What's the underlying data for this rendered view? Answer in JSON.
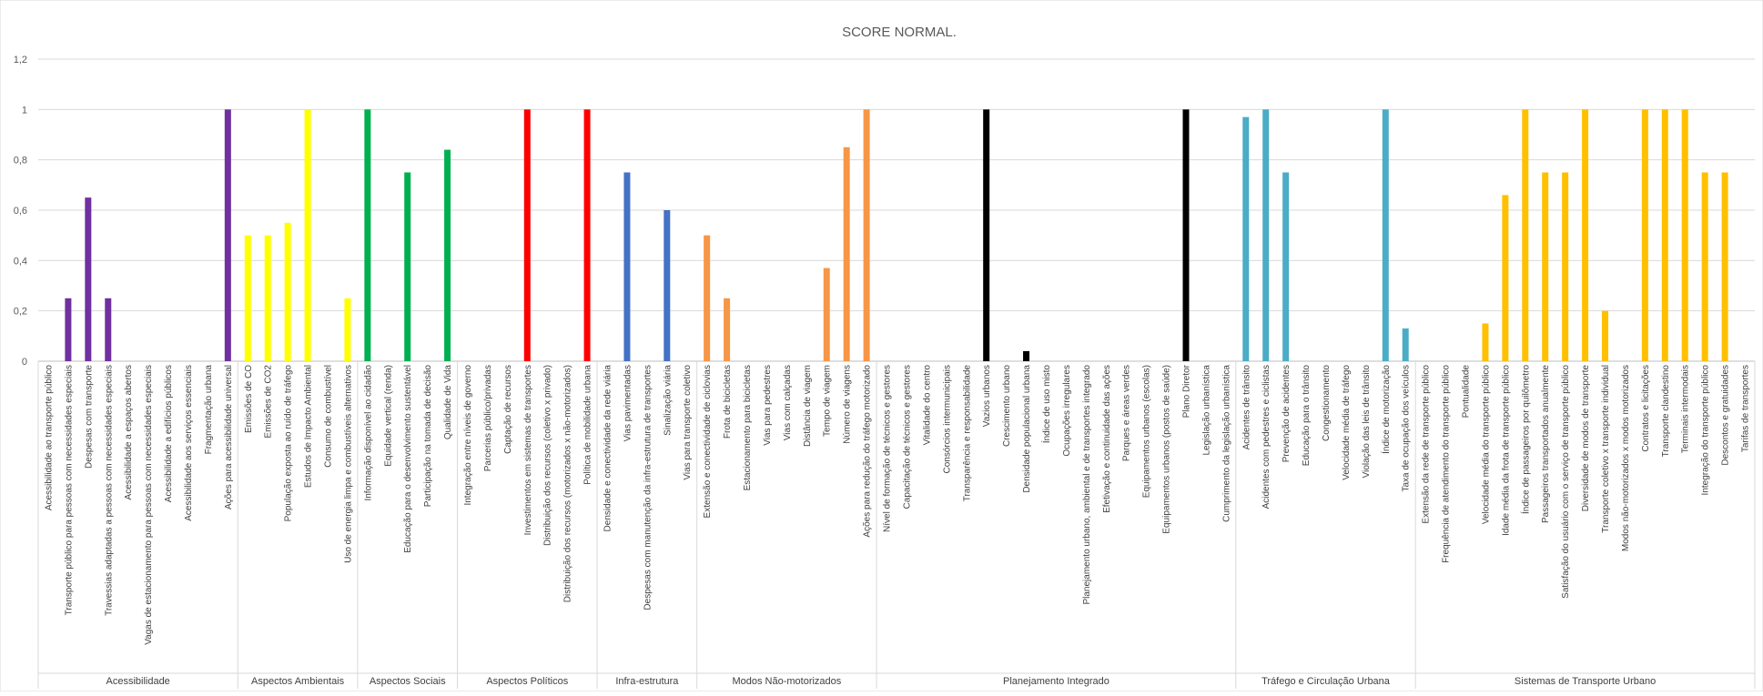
{
  "chart_data": {
    "type": "bar",
    "title": "SCORE NORMAL.",
    "ylim": [
      0,
      1.2
    ],
    "yticks": [
      "0",
      "0,2",
      "0,4",
      "0,6",
      "0,8",
      "1",
      "1,2"
    ],
    "grid": true,
    "legend": "none",
    "groups": [
      {
        "name": "Acessibilidade",
        "color": "#7030A0",
        "items": [
          {
            "label": "Acessibilidade ao transporte público",
            "value": 0
          },
          {
            "label": "Transporte público para pessoas com necessidades especiais",
            "value": 0.25
          },
          {
            "label": "Despesas com transporte",
            "value": 0.65
          },
          {
            "label": "Travessias adaptadas a pessoas com necessidades especiais",
            "value": 0.25
          },
          {
            "label": "Acessibilidade a espaços abertos",
            "value": 0
          },
          {
            "label": "Vagas de estacionamento para pessoas com necessidades especiais",
            "value": 0
          },
          {
            "label": "Acessibilidade a edifícios públicos",
            "value": 0
          },
          {
            "label": "Acessibilidade aos serviços essenciais",
            "value": 0
          },
          {
            "label": "Fragmentação urbana",
            "value": 0
          },
          {
            "label": "Ações para acessibilidade universal",
            "value": 1
          }
        ]
      },
      {
        "name": "Aspectos Ambientais",
        "color": "#FFFF00",
        "items": [
          {
            "label": "Emissões de CO",
            "value": 0.5
          },
          {
            "label": "Emissões de CO2",
            "value": 0.5
          },
          {
            "label": "População exposta ao ruído de tráfego",
            "value": 0.55
          },
          {
            "label": "Estudos de Impacto Ambiental",
            "value": 1
          },
          {
            "label": "Consumo de combustível",
            "value": 0
          },
          {
            "label": "Uso de energia limpa e combustíveis alternativos",
            "value": 0.25
          }
        ]
      },
      {
        "name": "Aspectos Sociais",
        "color": "#00B050",
        "items": [
          {
            "label": "Informação disponível ao cidadão",
            "value": 1
          },
          {
            "label": "Equidade vertical (renda)",
            "value": 0
          },
          {
            "label": "Educação para o desenvolvimento sustentável",
            "value": 0.75
          },
          {
            "label": "Participação na tomada de decisão",
            "value": 0
          },
          {
            "label": "Qualidade de Vida",
            "value": 0.84
          }
        ]
      },
      {
        "name": "Aspectos Políticos",
        "color": "#FF0000",
        "items": [
          {
            "label": "Integração entre níveis de governo",
            "value": 0
          },
          {
            "label": "Parcerias público/privadas",
            "value": 0
          },
          {
            "label": "Captação de recursos",
            "value": 0
          },
          {
            "label": "Investimentos em sistemas de transportes",
            "value": 1
          },
          {
            "label": "Distribuição dos recursos (coletivo x privado)",
            "value": 0
          },
          {
            "label": "Distribuição dos recursos (motorizados x não-motorizados)",
            "value": 0
          },
          {
            "label": "Política de mobilidade urbana",
            "value": 1
          }
        ]
      },
      {
        "name": "Infra-estrutura",
        "color": "#4472C4",
        "items": [
          {
            "label": "Densidade e conectividade da rede viária",
            "value": 0
          },
          {
            "label": "Vias pavimentadas",
            "value": 0.75
          },
          {
            "label": "Despesas com manutenção da infra-estrutura de transportes",
            "value": 0
          },
          {
            "label": "Sinalização viária",
            "value": 0.6
          },
          {
            "label": "Vias para transporte coletivo",
            "value": 0
          }
        ]
      },
      {
        "name": "Modos Não-motorizados",
        "color": "#F79646",
        "items": [
          {
            "label": "Extensão e conectividade de ciclovias",
            "value": 0.5
          },
          {
            "label": "Frota de bicicletas",
            "value": 0.25
          },
          {
            "label": "Estacionamento para bicicletas",
            "value": 0
          },
          {
            "label": "Vias para pedestres",
            "value": 0
          },
          {
            "label": "Vias com calçadas",
            "value": 0
          },
          {
            "label": "Distância de viagem",
            "value": 0
          },
          {
            "label": "Tempo de viagem",
            "value": 0.37
          },
          {
            "label": "Número de viagens",
            "value": 0.85
          },
          {
            "label": "Ações para redução do tráfego motorizado",
            "value": 1
          }
        ]
      },
      {
        "name": "Planejamento Integrado",
        "color": "#000000",
        "items": [
          {
            "label": "Nível de formação de técnicos e gestores",
            "value": 0
          },
          {
            "label": "Capacitação de técnicos e gestores",
            "value": 0
          },
          {
            "label": "Vitalidade do centro",
            "value": 0
          },
          {
            "label": "Consórcios intermunicipais",
            "value": 0
          },
          {
            "label": "Transparência e responsabilidade",
            "value": 0
          },
          {
            "label": "Vazios urbanos",
            "value": 1
          },
          {
            "label": "Crescimento urbano",
            "value": 0
          },
          {
            "label": "Densidade populacional urbana",
            "value": 0.04
          },
          {
            "label": "Índice de uso misto",
            "value": 0
          },
          {
            "label": "Ocupações irregulares",
            "value": 0
          },
          {
            "label": "Planejamento urbano, ambiental e de transportes integrado",
            "value": 0
          },
          {
            "label": "Efetivação e continuidade das ações",
            "value": 0
          },
          {
            "label": "Parques e áreas verdes",
            "value": 0
          },
          {
            "label": "Equipamentos urbanos (escolas)",
            "value": 0
          },
          {
            "label": "Equipamentos urbanos (postos de saúde)",
            "value": 0
          },
          {
            "label": "Plano Diretor",
            "value": 1
          },
          {
            "label": "Legislação urbanística",
            "value": 0
          },
          {
            "label": "Cumprimento da legislação urbanística",
            "value": 0
          }
        ]
      },
      {
        "name": "Tráfego e Circulação Urbana",
        "color": "#4BACC6",
        "items": [
          {
            "label": "Acidentes de trânsito",
            "value": 0.97
          },
          {
            "label": "Acidentes com pedestres e ciclistas",
            "value": 1
          },
          {
            "label": "Prevenção de acidentes",
            "value": 0.75
          },
          {
            "label": "Educação para o trânsito",
            "value": 0
          },
          {
            "label": "Congestionamento",
            "value": 0
          },
          {
            "label": "Velocidade média de tráfego",
            "value": 0
          },
          {
            "label": "Violação das leis de trânsito",
            "value": 0
          },
          {
            "label": "Índice de motorização",
            "value": 1
          },
          {
            "label": "Taxa de ocupação dos veículos",
            "value": 0.13
          }
        ]
      },
      {
        "name": "Sistemas de Transporte Urbano",
        "color": "#FFC000",
        "items": [
          {
            "label": "Extensão da rede de transporte público",
            "value": 0
          },
          {
            "label": "Frequência de atendimento do transporte público",
            "value": 0
          },
          {
            "label": "Pontualidade",
            "value": 0
          },
          {
            "label": "Velocidade média do transporte público",
            "value": 0.15
          },
          {
            "label": "Idade média da frota de transporte público",
            "value": 0.66
          },
          {
            "label": "Índice de passageiros por quilômetro",
            "value": 1
          },
          {
            "label": "Passageiros transportados anualmente",
            "value": 0.75
          },
          {
            "label": "Satisfação do usuário com o serviço de transporte público",
            "value": 0.75
          },
          {
            "label": "Diversidade de modos de transporte",
            "value": 1
          },
          {
            "label": "Transporte coletivo x transporte individual",
            "value": 0.2
          },
          {
            "label": "Modos não-motorizados x modos motorizados",
            "value": 0
          },
          {
            "label": "Contratos e licitações",
            "value": 1
          },
          {
            "label": "Transporte clandestino",
            "value": 1
          },
          {
            "label": "Terminais intermodais",
            "value": 1
          },
          {
            "label": "Integração do transporte público",
            "value": 0.75
          },
          {
            "label": "Descontos e gratuidades",
            "value": 0.75
          },
          {
            "label": "Tarifas de transportes",
            "value": 0
          }
        ]
      }
    ]
  }
}
